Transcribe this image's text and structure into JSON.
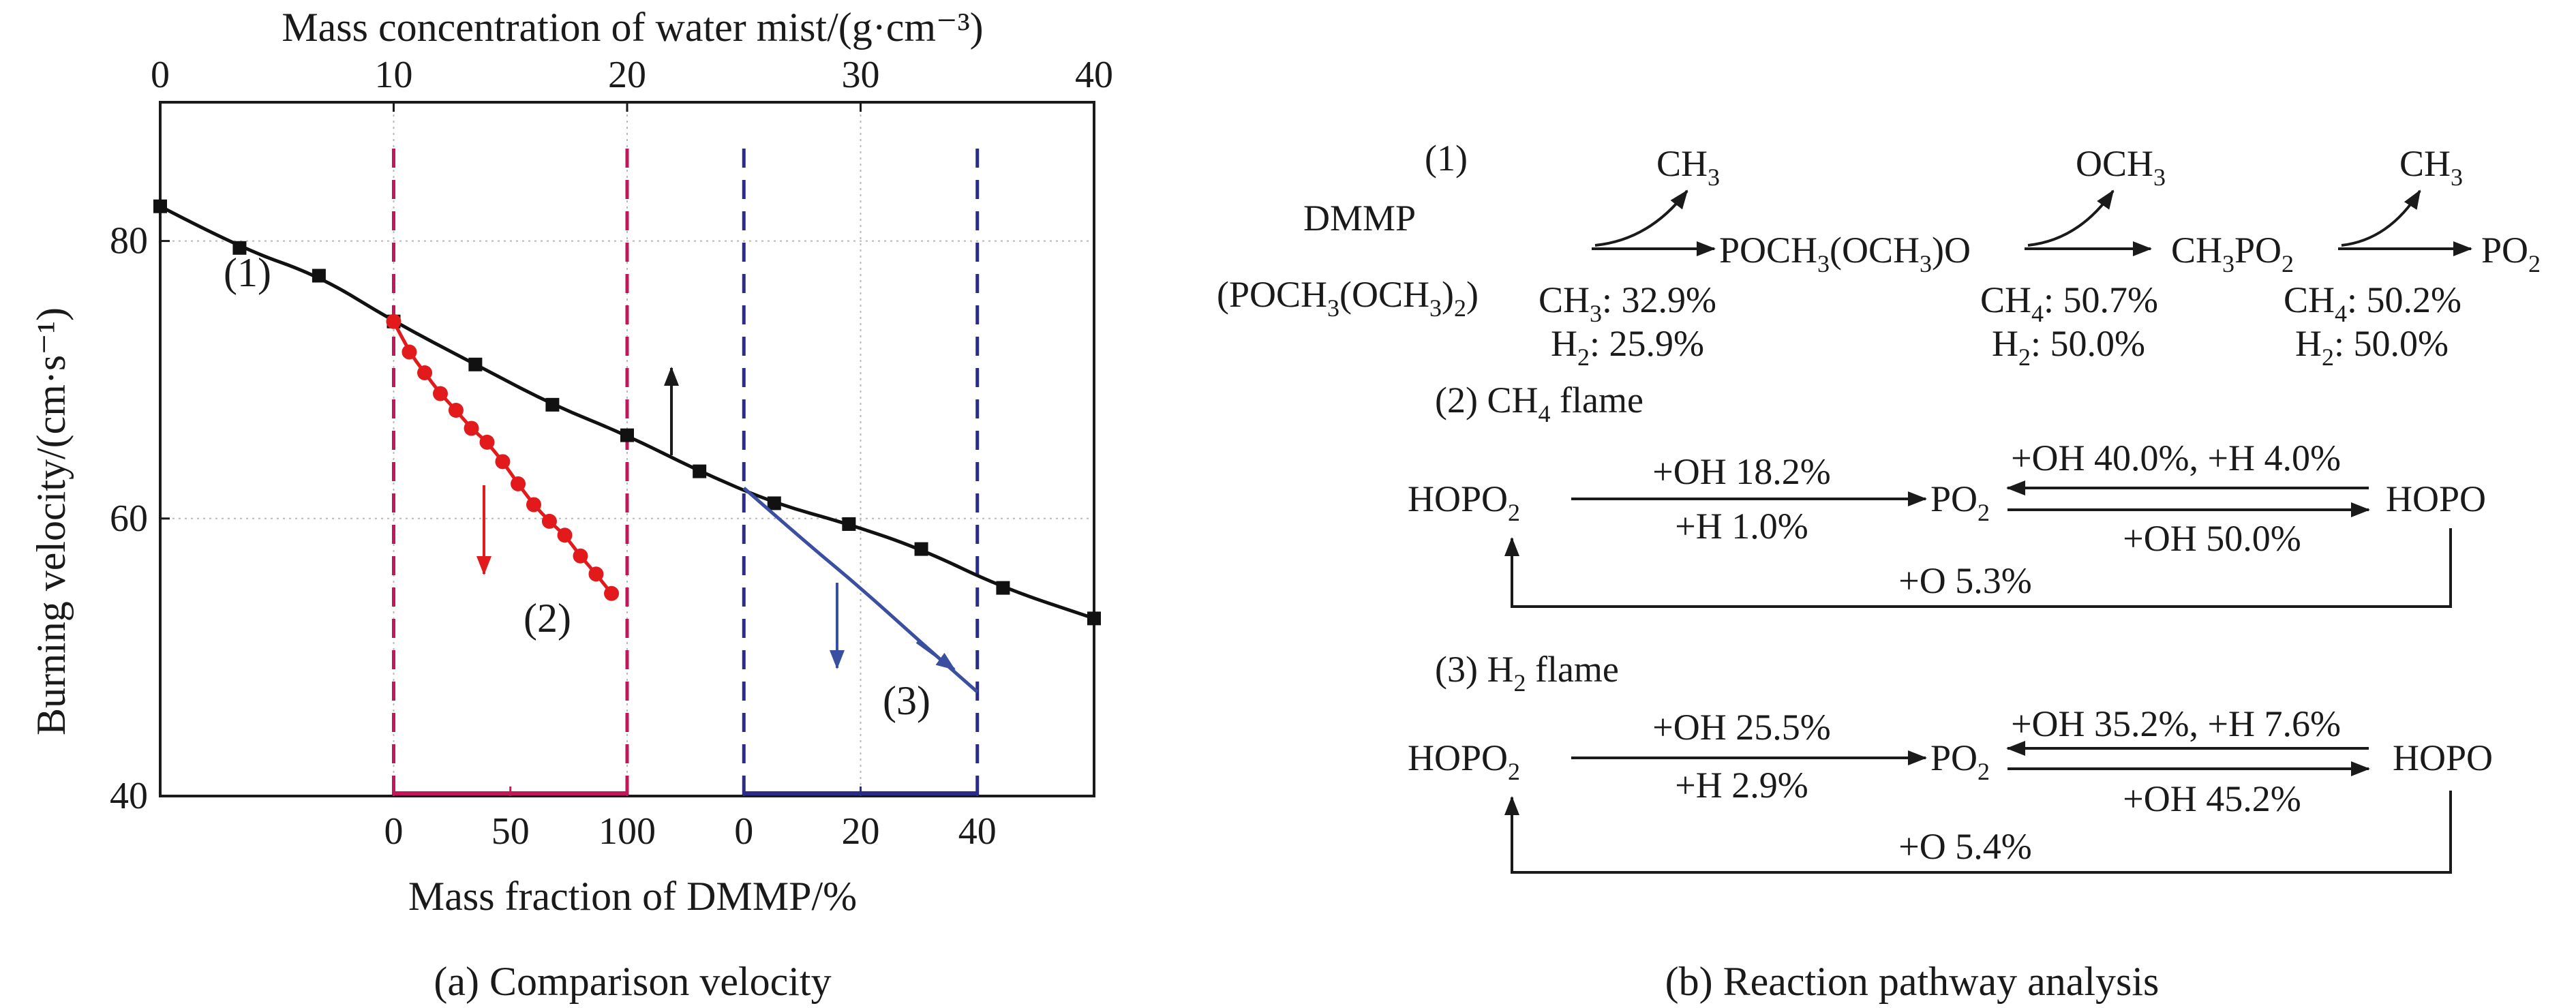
{
  "panel_a": {
    "caption": "(a) Comparison velocity",
    "top_axis_label": "Mass concentration of water mist/(g·cm⁻³)",
    "y_axis_label": "Burning velocity/(cm·s⁻¹)",
    "bottom_axis_label": "Mass fraction of DMMP/%",
    "curve_labels": [
      "(1)",
      "(2)",
      "(3)"
    ]
  },
  "panel_b": {
    "caption": "(b) Reaction pathway analysis",
    "pathway1": {
      "label": "(1)",
      "reactant_name": "DMMP",
      "reactant_formula": "(POCH3(OCH3)2)",
      "r1_ch3": "CH3: 32.9%",
      "r1_h2": "H2: 25.9%",
      "loss1": "CH3",
      "species2": "POCH3(OCH3)O",
      "loss2": "OCH3",
      "r2_ch4": "CH4: 50.7%",
      "r2_h2": "H2: 50.0%",
      "species3": "CH3PO2",
      "loss3": "CH3",
      "r3_ch4": "CH4: 50.2%",
      "r3_h2": "H2: 50.0%",
      "species4": "PO2"
    },
    "pathway2": {
      "title": "(2)  CH4 flame",
      "left": "HOPO2",
      "middle": "PO2",
      "right": "HOPO",
      "fwd_top": "+OH 18.2%",
      "fwd_bottom": "+H 1.0%",
      "back_top": "+OH 40.0%, +H 4.0%",
      "back_bottom": "+OH 50.0%",
      "loop": "+O 5.3%"
    },
    "pathway3": {
      "title": "(3)  H2 flame",
      "left": "HOPO2",
      "middle": "PO2",
      "right": "HOPO",
      "fwd_top": "+OH 25.5%",
      "fwd_bottom": "+H 2.9%",
      "back_top": "+OH 35.2%, +H 7.6%",
      "back_bottom": "+OH 45.2%",
      "loop": "+O 5.4%"
    }
  },
  "chart_data": {
    "type": "line",
    "ylabel": "Burning velocity/(cm·s⁻¹)",
    "ylim": [
      40,
      90
    ],
    "yticks": [
      40,
      60,
      80
    ],
    "grid": true,
    "x_top": {
      "label": "Mass concentration of water mist/(g·cm⁻³)",
      "range": [
        0,
        40
      ],
      "ticks": [
        0,
        10,
        20,
        30,
        40
      ]
    },
    "x_bottom": {
      "label": "Mass fraction of DMMP/%",
      "subaxes": [
        {
          "range": [
            0,
            100
          ],
          "ticks": [
            0,
            50,
            100
          ],
          "color": "#c2185b"
        },
        {
          "range": [
            0,
            40
          ],
          "ticks": [
            0,
            20,
            40
          ],
          "color": "#2b2b8c"
        }
      ]
    },
    "series": [
      {
        "name": "(1)",
        "axis": "water mist (top)",
        "color": "#111111",
        "marker": "square",
        "x": [
          0,
          3.4,
          6.8,
          10,
          13.5,
          16.8,
          20,
          23.1,
          26.3,
          29.5,
          32.6,
          36.1,
          40
        ],
        "y": [
          82.5,
          79.5,
          77.5,
          74.2,
          71.1,
          68.2,
          66.0,
          63.4,
          61.1,
          59.6,
          57.8,
          55.0,
          52.8
        ]
      },
      {
        "name": "(2)",
        "axis": "DMMP 0–100 %",
        "color": "#e31a1c",
        "marker": "circle",
        "x": [
          0,
          6.7,
          13.3,
          20,
          26.7,
          33.3,
          40,
          46.7,
          53.3,
          60,
          66.7,
          73.3,
          80,
          86.7,
          93.3
        ],
        "y": [
          74.2,
          72.0,
          70.5,
          69.0,
          67.8,
          66.5,
          65.5,
          64.1,
          62.5,
          61.0,
          59.8,
          58.8,
          57.3,
          56.0,
          54.6
        ]
      },
      {
        "name": "(3)",
        "axis": "DMMP 0–40 %",
        "color": "#3a4fa0",
        "marker": "none",
        "x": [
          0,
          10,
          20,
          30,
          40
        ],
        "y": [
          62.2,
          58.5,
          55.0,
          51.2,
          47.5
        ]
      }
    ]
  }
}
